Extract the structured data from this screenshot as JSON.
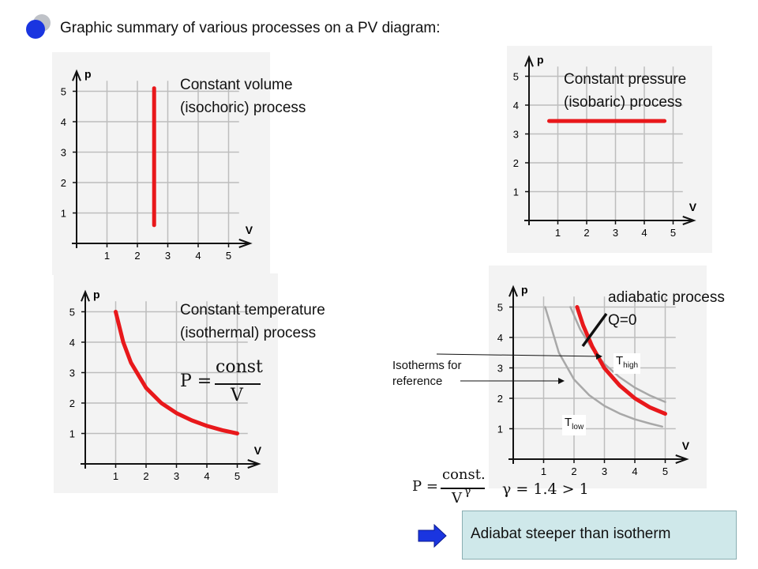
{
  "title": "Graphic summary of various processes on a PV diagram:",
  "colors": {
    "process": "#e8181b",
    "isotherm": "#a8a8a8",
    "grid": "#bdbdbd",
    "axis": "#111111",
    "bullet": "#1a35e0",
    "arrow": "#1a35e0",
    "box": "#cfe8ea"
  },
  "axes": {
    "x_label": "V",
    "y_label": "p",
    "x_ticks": [
      "1",
      "2",
      "3",
      "4",
      "5"
    ],
    "y_ticks": [
      "1",
      "2",
      "3",
      "4",
      "5"
    ]
  },
  "panels": {
    "isochoric": {
      "label_line1": "Constant volume",
      "label_line2": "(isochoric) process",
      "chart_data": {
        "type": "line",
        "xlabel": "V",
        "ylabel": "p",
        "xlim": [
          0,
          5.5
        ],
        "ylim": [
          0,
          5.5
        ],
        "series": [
          {
            "x": [
              2.55,
              2.55
            ],
            "y": [
              0.6,
              5.1
            ]
          }
        ]
      }
    },
    "isobaric": {
      "label_line1": "Constant pressure",
      "label_line2": "(isobaric) process",
      "chart_data": {
        "type": "line",
        "xlabel": "V",
        "ylabel": "p",
        "xlim": [
          0,
          5.5
        ],
        "ylim": [
          0,
          5.5
        ],
        "series": [
          {
            "x": [
              0.7,
              4.7
            ],
            "y": [
              3.45,
              3.45
            ]
          }
        ]
      }
    },
    "isothermal": {
      "label_line1": "Constant temperature",
      "label_line2": "(isothermal) process",
      "formula_lhs": "P =",
      "formula_num": "const",
      "formula_den": "V",
      "chart_data": {
        "type": "line",
        "xlabel": "V",
        "ylabel": "p",
        "xlim": [
          0,
          5.5
        ],
        "ylim": [
          0,
          5.5
        ],
        "series": [
          {
            "x": [
              1,
              1.25,
              1.5,
              2,
              2.5,
              3,
              3.5,
              4,
              4.5,
              5
            ],
            "y": [
              5,
              4,
              3.33,
              2.5,
              2,
              1.67,
              1.43,
              1.25,
              1.11,
              1
            ]
          }
        ]
      }
    },
    "adiabatic": {
      "label_line1": "adiabatic process",
      "label_line2": "Q=0",
      "isotherms_line1": "Isotherms for",
      "isotherms_line2": "reference",
      "t_high": "T",
      "t_high_sub": "high",
      "t_low": "T",
      "t_low_sub": "low",
      "formula_lhs": "P =",
      "formula_num": "const.",
      "formula_den": "V",
      "formula_exp": "γ",
      "gamma_text": "γ = 1.4 > 1",
      "chart_data": {
        "type": "line",
        "xlabel": "V",
        "ylabel": "p",
        "xlim": [
          0,
          5.5
        ],
        "ylim": [
          0,
          5.5
        ],
        "series": [
          {
            "role": "isotherm",
            "x": [
              1.05,
              1.5,
              2,
              2.5,
              3,
              3.5,
              4,
              4.5,
              4.9
            ],
            "y": [
              5.0,
              3.5,
              2.62,
              2.1,
              1.75,
              1.5,
              1.31,
              1.17,
              1.07
            ]
          },
          {
            "role": "isotherm",
            "x": [
              1.88,
              2.2,
              2.6,
              3,
              3.5,
              4,
              4.5,
              5
            ],
            "y": [
              5.0,
              4.27,
              3.62,
              3.13,
              2.69,
              2.35,
              2.09,
              1.88
            ]
          },
          {
            "role": "process",
            "x": [
              2.1,
              2.3,
              2.6,
              3,
              3.5,
              4,
              4.5,
              5
            ],
            "y": [
              5.0,
              4.4,
              3.7,
              2.99,
              2.42,
              2.0,
              1.7,
              1.49
            ]
          }
        ]
      }
    }
  },
  "conclusion": "Adiabat steeper than isotherm"
}
